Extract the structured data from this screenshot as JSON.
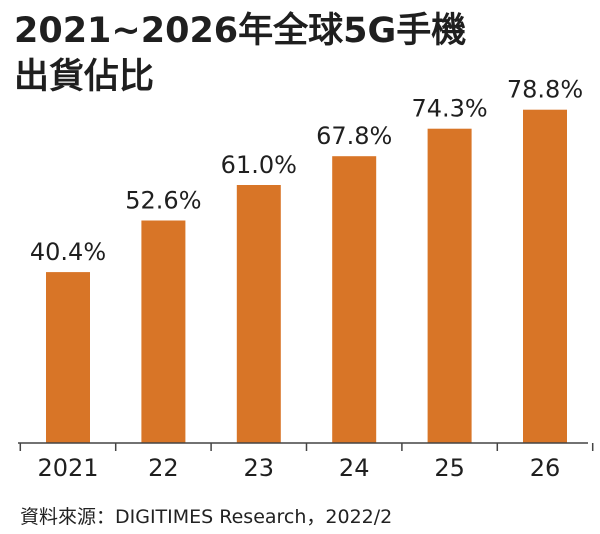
{
  "title_line1": "2021~2026年全球5G手機",
  "title_line2": "出貨佔比",
  "source": "資料來源：DIGITIMES Research，2022/2",
  "colors": {
    "bar": "#d87527",
    "axis": "#444444",
    "text": "#1f1f1f"
  },
  "chart_data": {
    "type": "bar",
    "title": "2021~2026年全球5G手機出貨佔比",
    "categories": [
      "2021",
      "22",
      "23",
      "24",
      "25",
      "26"
    ],
    "values": [
      40.4,
      52.6,
      61.0,
      67.8,
      74.3,
      78.8
    ],
    "data_labels": [
      "40.4%",
      "52.6%",
      "61.0%",
      "67.8%",
      "74.3%",
      "78.8%"
    ],
    "unit": "%",
    "ylim": [
      0,
      100
    ],
    "grid": false,
    "legend": "none",
    "xlabel": "",
    "ylabel": ""
  }
}
